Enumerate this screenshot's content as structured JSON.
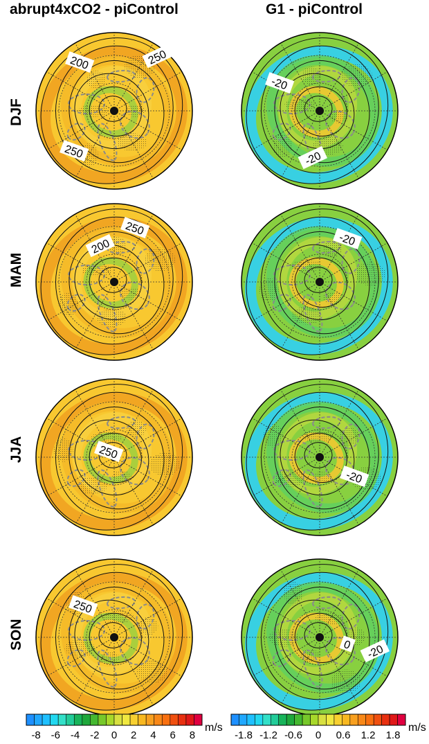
{
  "columns": [
    "abrupt4xCO2 - piControl",
    "G1 - piControl"
  ],
  "rows": [
    "DJF",
    "MAM",
    "JJA",
    "SON"
  ],
  "panels": [
    {
      "row": "DJF",
      "col": 0,
      "contour_labels": [
        "200",
        "250",
        "250"
      ]
    },
    {
      "row": "DJF",
      "col": 1,
      "contour_labels": [
        "-20",
        "-20"
      ]
    },
    {
      "row": "MAM",
      "col": 0,
      "contour_labels": [
        "250",
        "200"
      ]
    },
    {
      "row": "MAM",
      "col": 1,
      "contour_labels": [
        "-20"
      ]
    },
    {
      "row": "JJA",
      "col": 0,
      "contour_labels": [
        "250"
      ]
    },
    {
      "row": "JJA",
      "col": 1,
      "contour_labels": [
        "-20"
      ]
    },
    {
      "row": "SON",
      "col": 0,
      "contour_labels": [
        "250"
      ]
    },
    {
      "row": "SON",
      "col": 1,
      "contour_labels": [
        "0",
        "-20"
      ]
    }
  ],
  "colorbars": [
    {
      "unit": "m/s",
      "ticks": [
        "-8",
        "-6",
        "-4",
        "-2",
        "0",
        "2",
        "4",
        "6",
        "8"
      ],
      "colors": [
        "#1e90ff",
        "#20a8ff",
        "#1fc0ff",
        "#22d8f0",
        "#33e0c8",
        "#22cc99",
        "#18b45a",
        "#1fa83c",
        "#44b830",
        "#77c82a",
        "#a8d82a",
        "#d8e040",
        "#f0e840",
        "#f8d030",
        "#f8b820",
        "#f8a020",
        "#f88818",
        "#f87010",
        "#f05010",
        "#e83010",
        "#e01818",
        "#e00040"
      ]
    },
    {
      "unit": "m/s",
      "ticks": [
        "-1.8",
        "-1.2",
        "-0.6",
        "0",
        "0.6",
        "1.2",
        "1.8"
      ],
      "colors": [
        "#1e90ff",
        "#20a8ff",
        "#1fc0ff",
        "#22d8f0",
        "#33e0c8",
        "#22cc99",
        "#18b45a",
        "#1fa83c",
        "#44b830",
        "#77c82a",
        "#a8d82a",
        "#d8e040",
        "#f0e840",
        "#f8d030",
        "#f8b820",
        "#f8a020",
        "#f88818",
        "#f87010",
        "#f05010",
        "#e83010",
        "#e01818",
        "#e00040"
      ]
    }
  ]
}
